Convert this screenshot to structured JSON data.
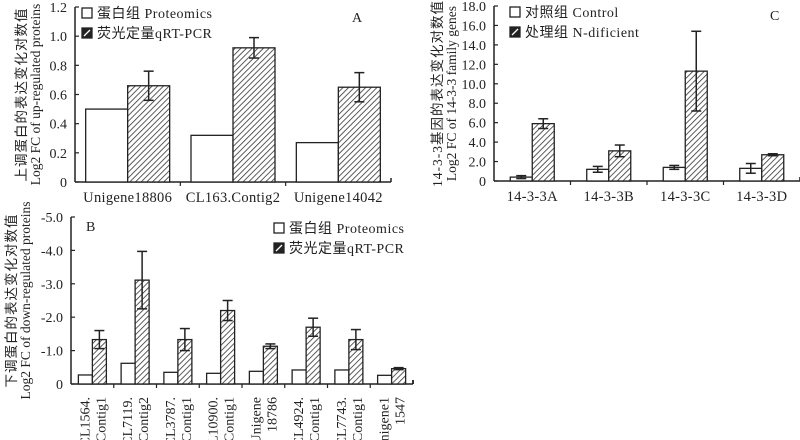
{
  "chart_data": [
    {
      "id": "A",
      "type": "bar",
      "panel_label": "A",
      "ylabel_cn": "上调蛋白的表达变化对数值",
      "ylabel_en": "Log2 FC of up-regulated proteins",
      "ylim": [
        0,
        1.2
      ],
      "yticks": [
        "0",
        "0.2",
        "0.4",
        "0.6",
        "0.8",
        "1.0",
        "1.2"
      ],
      "ytick_values": [
        0,
        0.2,
        0.4,
        0.6,
        0.8,
        1.0,
        1.2
      ],
      "categories": [
        "Unigene18806",
        "CL163.Contig2",
        "Unigene14042"
      ],
      "legend_position": "top-left",
      "series": [
        {
          "name": "蛋白组 Proteomics",
          "pattern": "white",
          "values": [
            0.5,
            0.32,
            0.27
          ],
          "errors": [
            0,
            0,
            0
          ]
        },
        {
          "name": "荧光定量qRT-PCR",
          "pattern": "hatched",
          "values": [
            0.66,
            0.92,
            0.65
          ],
          "errors": [
            0.1,
            0.07,
            0.1
          ]
        }
      ]
    },
    {
      "id": "C",
      "type": "bar",
      "panel_label": "C",
      "ylabel_cn": "14-3-3基因的表达变化对数值",
      "ylabel_en": "Log2 FC of 14-3-3 family genes",
      "ylim": [
        0,
        18
      ],
      "yticks": [
        "0",
        "2.0",
        "4.0",
        "6.0",
        "8.0",
        "10.0",
        "12.0",
        "14.0",
        "16.0",
        "18.0"
      ],
      "ytick_values": [
        0,
        2,
        4,
        6,
        8,
        10,
        12,
        14,
        16,
        18
      ],
      "categories": [
        "14-3-3A",
        "14-3-3B",
        "14-3-3C",
        "14-3-3D"
      ],
      "legend_position": "top-left",
      "series": [
        {
          "name": "对照组 Control",
          "pattern": "white",
          "values": [
            0.4,
            1.2,
            1.4,
            1.3
          ],
          "errors": [
            0.15,
            0.3,
            0.2,
            0.5
          ]
        },
        {
          "name": "处理组 N-dificient",
          "pattern": "hatched",
          "values": [
            5.9,
            3.1,
            11.3,
            2.7
          ],
          "errors": [
            0.5,
            0.6,
            4.1,
            0.1
          ]
        }
      ]
    },
    {
      "id": "B",
      "type": "bar",
      "panel_label": "B",
      "ylabel_cn": "下调蛋白的表达变化对数值",
      "ylabel_en": "Log2 FC of down-regulated proteins",
      "ylim": [
        0,
        -5.0
      ],
      "yticks": [
        "0",
        "-1.0",
        "-2.0",
        "-3.0",
        "-4.0",
        "-5.0"
      ],
      "ytick_values": [
        0,
        -1,
        -2,
        -3,
        -4,
        -5
      ],
      "categories": [
        [
          "CL1564.",
          "Contig1"
        ],
        [
          "CL7119.",
          "Contig2"
        ],
        [
          "CL3787.",
          "Contig1"
        ],
        [
          "CL10900.",
          "Contig1"
        ],
        [
          "Unigene",
          "18786"
        ],
        [
          "CL4924.",
          "Contig1"
        ],
        [
          "CL7743.",
          "Contig1"
        ],
        [
          "Unigene1",
          "1547"
        ]
      ],
      "legend_position": "top-right",
      "series": [
        {
          "name": "蛋白组 Proteomics",
          "pattern": "white",
          "values": [
            -0.27,
            -0.62,
            -0.35,
            -0.32,
            -0.38,
            -0.42,
            -0.42,
            -0.26
          ],
          "errors": [
            0,
            0,
            0,
            0,
            0,
            0,
            0,
            0
          ]
        },
        {
          "name": "荧光定量qRT-PCR",
          "pattern": "hatched",
          "values": [
            -1.33,
            -3.11,
            -1.33,
            -2.2,
            -1.13,
            -1.7,
            -1.33,
            -0.46
          ],
          "errors": [
            0.27,
            0.86,
            0.33,
            0.3,
            0.07,
            0.27,
            0.3,
            0.03
          ]
        }
      ]
    }
  ]
}
